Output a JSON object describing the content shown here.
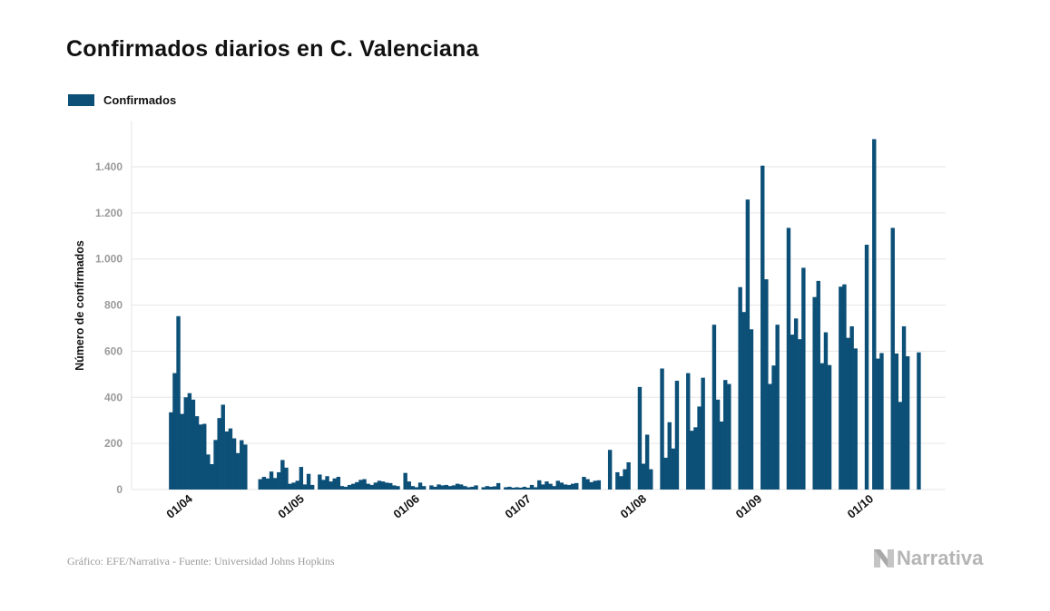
{
  "header": {
    "title": "Confirmados diarios en C. Valenciana"
  },
  "legend": {
    "label": "Confirmados",
    "color": "#0c4f77"
  },
  "footer": {
    "source": "Gráfico: EFE/Narrativa - Fuente: Universidad Johns Hopkins",
    "brand": "Narrativa"
  },
  "chart_data": {
    "type": "bar",
    "title": "Confirmados diarios en C. Valenciana",
    "xlabel": "",
    "ylabel": "Número de confirmados",
    "ylim": [
      0,
      1550
    ],
    "yticks": [
      0,
      200,
      400,
      600,
      800,
      1000,
      1200,
      1400
    ],
    "ytick_labels": [
      "0",
      "200",
      "400",
      "600",
      "800",
      "1.000",
      "1.200",
      "1.400"
    ],
    "xticks": [
      {
        "day": 0,
        "label": "01/04"
      },
      {
        "day": 30,
        "label": "01/05"
      },
      {
        "day": 61,
        "label": "01/06"
      },
      {
        "day": 91,
        "label": "01/07"
      },
      {
        "day": 122,
        "label": "01/08"
      },
      {
        "day": 153,
        "label": "01/09"
      },
      {
        "day": 183,
        "label": "01/10"
      }
    ],
    "grid": true,
    "legend_position": "top-left",
    "start_day_offset": -3,
    "series": [
      {
        "name": "Confirmados",
        "color": "#0c4f77",
        "values": [
          335,
          505,
          752,
          328,
          400,
          418,
          390,
          318,
          282,
          285,
          152,
          110,
          215,
          310,
          368,
          252,
          265,
          222,
          158,
          214,
          195,
          0,
          0,
          0,
          45,
          55,
          48,
          78,
          50,
          75,
          128,
          95,
          25,
          30,
          38,
          98,
          22,
          68,
          20,
          0,
          65,
          42,
          58,
          35,
          48,
          55,
          15,
          12,
          20,
          25,
          32,
          42,
          45,
          25,
          20,
          30,
          38,
          35,
          30,
          28,
          18,
          15,
          0,
          72,
          35,
          15,
          10,
          30,
          15,
          0,
          18,
          12,
          22,
          18,
          20,
          15,
          18,
          25,
          22,
          15,
          10,
          12,
          18,
          0,
          10,
          15,
          12,
          14,
          28,
          0,
          10,
          12,
          8,
          10,
          8,
          12,
          8,
          20,
          10,
          40,
          22,
          35,
          25,
          15,
          38,
          30,
          22,
          20,
          25,
          28,
          0,
          55,
          45,
          32,
          38,
          40,
          0,
          0,
          172,
          0,
          75,
          58,
          88,
          118,
          0,
          0,
          445,
          112,
          238,
          88,
          0,
          0,
          525,
          138,
          292,
          178,
          472,
          0,
          0,
          505,
          255,
          270,
          360,
          485,
          0,
          0,
          715,
          390,
          295,
          475,
          458,
          0,
          0,
          878,
          770,
          1258,
          695,
          0,
          0,
          1405,
          912,
          458,
          538,
          715,
          0,
          0,
          1135,
          672,
          742,
          652,
          962,
          0,
          0,
          835,
          905,
          548,
          682,
          540,
          0,
          0,
          880,
          890,
          658,
          708,
          612,
          0,
          0,
          1062,
          0,
          1520,
          568,
          592,
          0,
          0,
          1135,
          590,
          380,
          708,
          578,
          0,
          0,
          595
        ]
      }
    ]
  }
}
